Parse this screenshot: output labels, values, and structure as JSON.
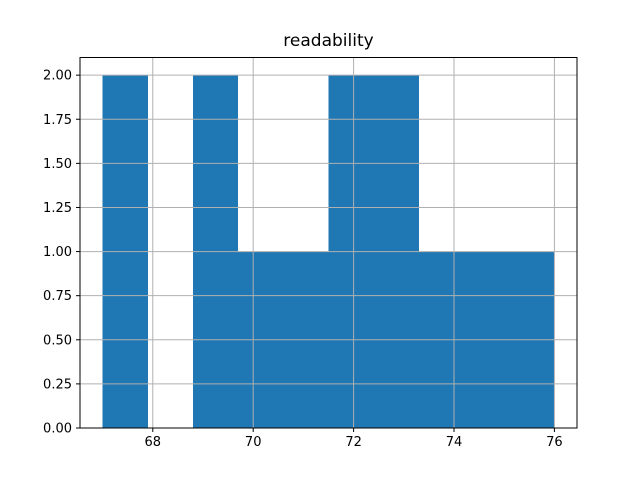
{
  "window": {
    "title": "readability"
  },
  "chart_data": {
    "type": "bar",
    "subtype": "histogram",
    "title": "readability",
    "xlabel": "",
    "ylabel": "",
    "bin_edges": [
      67.0,
      67.9,
      68.8,
      69.7,
      70.6,
      71.5,
      72.4,
      73.3,
      74.2,
      75.1,
      76.0
    ],
    "counts": [
      2,
      0,
      2,
      1,
      1,
      2,
      2,
      1,
      1,
      1
    ],
    "xlim": [
      66.55,
      76.45
    ],
    "ylim": [
      0,
      2.1
    ],
    "x_ticks": [
      68,
      70,
      72,
      74,
      76
    ],
    "x_tick_labels": [
      "68",
      "70",
      "72",
      "74",
      "76"
    ],
    "y_ticks": [
      0,
      0.25,
      0.5,
      0.75,
      1.0,
      1.25,
      1.5,
      1.75,
      2.0
    ],
    "y_tick_labels": [
      "0.00",
      "0.25",
      "0.50",
      "0.75",
      "1.00",
      "1.25",
      "1.50",
      "1.75",
      "2.00"
    ],
    "grid": true,
    "legend": "none",
    "colors": {
      "bar": "#1f77b4",
      "grid": "#b0b0b0",
      "axis": "#000000",
      "background": "#ffffff",
      "text": "#000000"
    }
  }
}
